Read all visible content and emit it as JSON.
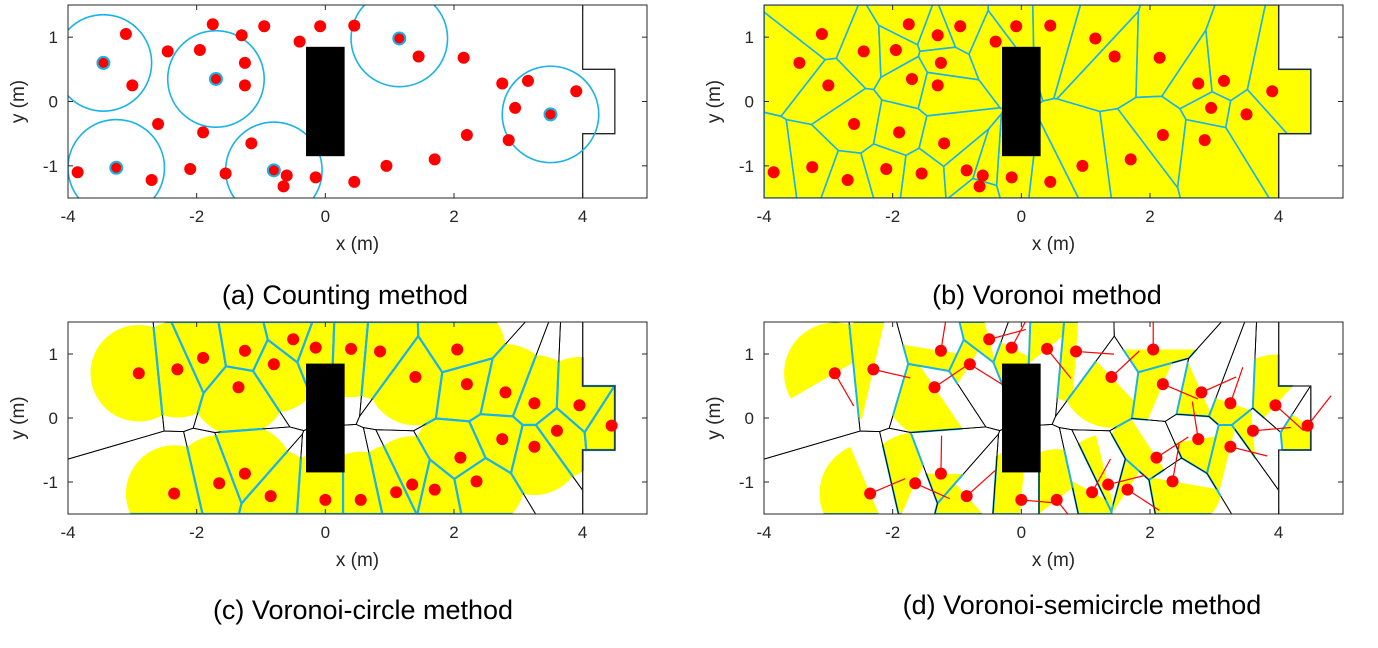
{
  "colors": {
    "point": "#ff0000",
    "circle": "#1ab3e6",
    "cell_fill": "#ffff00",
    "cell_edge": "#1ab3e6",
    "obstacle": "#000000",
    "frame": "#262626",
    "diagram_edge": "#000000",
    "direction_line": "#ff0000"
  },
  "chart_data": [
    {
      "id": "a",
      "type": "scatter",
      "caption": "(a) Counting method",
      "xlabel": "x (m)",
      "ylabel": "y (m)",
      "xlim": [
        -4,
        5
      ],
      "ylim": [
        -1.5,
        1.5
      ],
      "xticks": [
        "-4",
        "-2",
        "0",
        "2",
        "4"
      ],
      "yticks": [
        "-1",
        "0",
        "1"
      ],
      "region": "corridor [-4,4] x [-1.5,1.5] with exit recess [4,4.5] x [-0.5,0.5]",
      "obstacle": {
        "x": [
          -0.3,
          0.3
        ],
        "y": [
          -0.85,
          0.85
        ]
      },
      "circle_radius_m": 0.75,
      "measurement_centers": [
        [
          -3.45,
          0.6
        ],
        [
          -1.7,
          0.35
        ],
        [
          -3.25,
          -1.03
        ],
        [
          -0.8,
          -1.07
        ],
        [
          1.15,
          0.98
        ],
        [
          3.5,
          -0.2
        ]
      ],
      "pedestrians": [
        [
          -3.1,
          1.05
        ],
        [
          -2.45,
          0.78
        ],
        [
          -1.75,
          1.2
        ],
        [
          -1.3,
          1.03
        ],
        [
          -1.95,
          0.8
        ],
        [
          -1.25,
          0.6
        ],
        [
          -3.0,
          0.25
        ],
        [
          -1.25,
          0.25
        ],
        [
          -2.6,
          -0.35
        ],
        [
          -1.9,
          -0.48
        ],
        [
          -1.15,
          -0.65
        ],
        [
          -3.85,
          -1.1
        ],
        [
          -2.7,
          -1.22
        ],
        [
          -2.1,
          -1.05
        ],
        [
          -1.55,
          -1.12
        ],
        [
          -0.95,
          1.17
        ],
        [
          -0.4,
          0.93
        ],
        [
          -0.08,
          1.17
        ],
        [
          0.45,
          1.18
        ],
        [
          1.45,
          0.7
        ],
        [
          2.15,
          0.68
        ],
        [
          2.75,
          0.28
        ],
        [
          3.15,
          0.32
        ],
        [
          2.95,
          -0.1
        ],
        [
          3.9,
          0.16
        ],
        [
          2.2,
          -0.52
        ],
        [
          2.85,
          -0.6
        ],
        [
          1.7,
          -0.9
        ],
        [
          0.95,
          -1.0
        ],
        [
          0.45,
          -1.25
        ],
        [
          -0.15,
          -1.18
        ],
        [
          -0.6,
          -1.15
        ],
        [
          -0.65,
          -1.32
        ]
      ]
    },
    {
      "id": "b",
      "type": "scatter",
      "caption": "(b) Voronoi method",
      "xlabel": "x (m)",
      "ylabel": "y (m)",
      "xlim": [
        -4,
        5
      ],
      "ylim": [
        -1.5,
        1.5
      ],
      "xticks": [
        "-4",
        "-2",
        "0",
        "2",
        "4"
      ],
      "yticks": [
        "-1",
        "0",
        "1"
      ],
      "region": "corridor [-4,4] x [-1.5,1.5] with exit recess [4,4.5] x [-0.5,0.5]",
      "obstacle": {
        "x": [
          -0.3,
          0.3
        ],
        "y": [
          -0.85,
          0.85
        ]
      },
      "cells": "Voronoi cells clipped to corridor",
      "pedestrians": [
        [
          -3.1,
          1.05
        ],
        [
          -2.45,
          0.78
        ],
        [
          -1.75,
          1.2
        ],
        [
          -1.3,
          1.03
        ],
        [
          -1.95,
          0.8
        ],
        [
          -1.25,
          0.6
        ],
        [
          -3.45,
          0.6
        ],
        [
          -3.0,
          0.25
        ],
        [
          -1.7,
          0.35
        ],
        [
          -1.3,
          0.25
        ],
        [
          -2.6,
          -0.35
        ],
        [
          -1.9,
          -0.48
        ],
        [
          -1.2,
          -0.65
        ],
        [
          -3.85,
          -1.1
        ],
        [
          -3.25,
          -1.02
        ],
        [
          -2.7,
          -1.22
        ],
        [
          -2.1,
          -1.05
        ],
        [
          -1.55,
          -1.12
        ],
        [
          -0.85,
          -1.07
        ],
        [
          -0.95,
          1.17
        ],
        [
          -0.4,
          0.93
        ],
        [
          -0.08,
          1.17
        ],
        [
          0.45,
          1.18
        ],
        [
          1.15,
          0.98
        ],
        [
          1.45,
          0.7
        ],
        [
          2.15,
          0.68
        ],
        [
          2.75,
          0.28
        ],
        [
          3.15,
          0.32
        ],
        [
          2.95,
          -0.1
        ],
        [
          3.5,
          -0.2
        ],
        [
          3.9,
          0.16
        ],
        [
          2.2,
          -0.52
        ],
        [
          2.85,
          -0.6
        ],
        [
          1.7,
          -0.9
        ],
        [
          0.95,
          -1.0
        ],
        [
          0.45,
          -1.25
        ],
        [
          -0.15,
          -1.18
        ],
        [
          -0.6,
          -1.15
        ],
        [
          -0.65,
          -1.32
        ]
      ]
    },
    {
      "id": "c",
      "type": "scatter",
      "caption": "(c) Voronoi-circle method",
      "xlabel": "x (m)",
      "ylabel": "y (m)",
      "xlim": [
        -4,
        5
      ],
      "ylim": [
        -1.5,
        1.5
      ],
      "xticks": [
        "-4",
        "-2",
        "0",
        "2",
        "4"
      ],
      "yticks": [
        "-1",
        "0",
        "1"
      ],
      "region": "corridor [-4,4] x [-1.5,1.5] with exit recess [4,4.5] x [-0.5,0.5]",
      "obstacle": {
        "x": [
          -0.3,
          0.3
        ],
        "y": [
          -0.85,
          0.85
        ]
      },
      "circle_radius_m": 0.75,
      "cells": "Voronoi cells intersected with circles",
      "pedestrians": [
        [
          -2.9,
          0.7
        ],
        [
          -2.3,
          0.76
        ],
        [
          -1.9,
          0.94
        ],
        [
          -1.25,
          1.05
        ],
        [
          -1.35,
          0.48
        ],
        [
          -0.8,
          0.84
        ],
        [
          -0.5,
          1.23
        ],
        [
          -0.15,
          1.1
        ],
        [
          0.4,
          1.08
        ],
        [
          0.85,
          1.04
        ],
        [
          1.4,
          0.64
        ],
        [
          2.05,
          1.07
        ],
        [
          2.2,
          0.53
        ],
        [
          2.8,
          0.4
        ],
        [
          3.25,
          0.23
        ],
        [
          3.95,
          0.2
        ],
        [
          3.6,
          -0.2
        ],
        [
          4.45,
          -0.12
        ],
        [
          2.75,
          -0.33
        ],
        [
          3.25,
          -0.45
        ],
        [
          2.1,
          -0.62
        ],
        [
          2.35,
          -0.99
        ],
        [
          1.7,
          -1.12
        ],
        [
          1.35,
          -1.04
        ],
        [
          1.1,
          -1.16
        ],
        [
          0.55,
          -1.28
        ],
        [
          0.0,
          -1.28
        ],
        [
          -0.85,
          -1.22
        ],
        [
          -1.25,
          -0.87
        ],
        [
          -1.65,
          -1.02
        ],
        [
          -2.35,
          -1.18
        ]
      ]
    },
    {
      "id": "d",
      "type": "scatter",
      "caption": "(d) Voronoi-semicircle method",
      "xlabel": "x (m)",
      "ylabel": "y (m)",
      "xlim": [
        -4,
        5
      ],
      "ylim": [
        -1.5,
        1.5
      ],
      "xticks": [
        "-4",
        "-2",
        "0",
        "2",
        "4"
      ],
      "yticks": [
        "-1",
        "0",
        "1"
      ],
      "region": "corridor [-4,4] x [-1.5,1.5] with exit recess [4,4.5] x [-0.5,0.5]",
      "obstacle": {
        "x": [
          -0.3,
          0.3
        ],
        "y": [
          -0.85,
          0.85
        ]
      },
      "cells": "Voronoi cells intersected with forward semicircles",
      "pedestrians": [
        [
          -2.9,
          0.7
        ],
        [
          -2.3,
          0.76
        ],
        [
          -1.35,
          0.48
        ],
        [
          -1.25,
          1.05
        ],
        [
          -0.8,
          0.84
        ],
        [
          -0.5,
          1.23
        ],
        [
          -0.15,
          1.1
        ],
        [
          0.4,
          1.08
        ],
        [
          0.85,
          1.04
        ],
        [
          1.4,
          0.64
        ],
        [
          2.05,
          1.07
        ],
        [
          2.2,
          0.53
        ],
        [
          2.8,
          0.4
        ],
        [
          3.25,
          0.23
        ],
        [
          3.95,
          0.2
        ],
        [
          3.6,
          -0.2
        ],
        [
          4.45,
          -0.12
        ],
        [
          2.75,
          -0.33
        ],
        [
          3.25,
          -0.45
        ],
        [
          2.1,
          -0.62
        ],
        [
          2.35,
          -0.99
        ],
        [
          1.65,
          -1.12
        ],
        [
          1.35,
          -1.04
        ],
        [
          1.1,
          -1.16
        ],
        [
          0.55,
          -1.28
        ],
        [
          0.0,
          -1.28
        ],
        [
          -0.85,
          -1.22
        ],
        [
          -1.25,
          -0.87
        ],
        [
          -1.65,
          -1.02
        ],
        [
          -2.35,
          -1.18
        ]
      ]
    }
  ]
}
